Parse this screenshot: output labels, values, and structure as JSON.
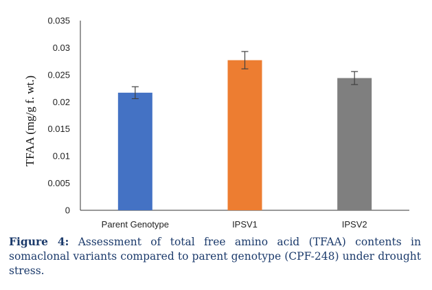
{
  "chart_data": {
    "type": "bar",
    "categories": [
      "Parent Genotype",
      "IPSV1",
      "IPSV2"
    ],
    "values": [
      0.0217,
      0.0277,
      0.0244
    ],
    "errors": [
      0.0011,
      0.0016,
      0.0012
    ],
    "colors": [
      "#4472c4",
      "#ed7d31",
      "#7f7f7f"
    ],
    "ylabel": "TFAA (mg/g f. wt.)",
    "ylim": [
      0,
      0.035
    ],
    "yticks": [
      "0",
      "0.005",
      "0.01",
      "0.015",
      "0.02",
      "0.025",
      "0.03",
      "0.035"
    ],
    "grid": false
  },
  "caption": {
    "label": "Figure 4:",
    "text": "Assessment of total free amino acid (TFAA) contents in somaclonal variants compared to parent genotype (CPF-248) under drought stress."
  }
}
